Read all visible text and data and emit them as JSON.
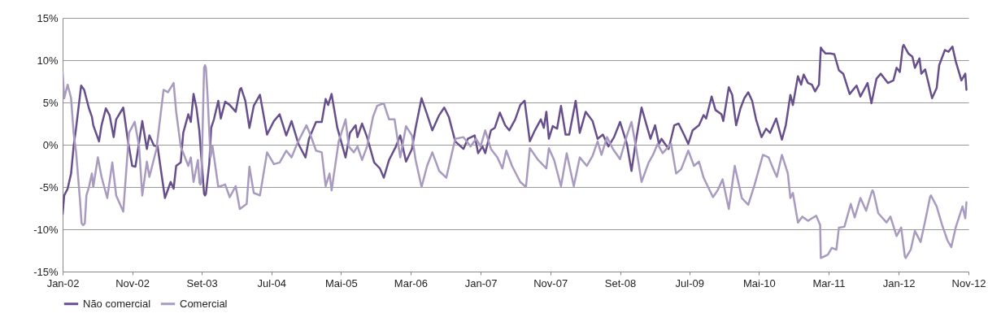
{
  "chart_data": {
    "type": "line",
    "xlim": [
      "2002-01-01",
      "2012-11-01"
    ],
    "xticks": [
      {
        "value": "2002-01-01",
        "label": "Jan-02"
      },
      {
        "value": "2002-11-01",
        "label": "Nov-02"
      },
      {
        "value": "2003-09-01",
        "label": "Set-03"
      },
      {
        "value": "2004-07-01",
        "label": "Jul-04"
      },
      {
        "value": "2005-05-01",
        "label": "Mai-05"
      },
      {
        "value": "2006-03-01",
        "label": "Mar-06"
      },
      {
        "value": "2007-01-01",
        "label": "Jan-07"
      },
      {
        "value": "2007-11-01",
        "label": "Nov-07"
      },
      {
        "value": "2008-09-01",
        "label": "Set-08"
      },
      {
        "value": "2009-07-01",
        "label": "Jul-09"
      },
      {
        "value": "2010-05-01",
        "label": "Mai-10"
      },
      {
        "value": "2011-03-01",
        "label": "Mar-11"
      },
      {
        "value": "2012-01-01",
        "label": "Jan-12"
      },
      {
        "value": "2012-11-01",
        "label": "Nov-12"
      }
    ],
    "ylim": [
      -15,
      15
    ],
    "yticks": [
      {
        "value": -15,
        "label": "-15%"
      },
      {
        "value": -10,
        "label": "-10%"
      },
      {
        "value": -5,
        "label": "-5%"
      },
      {
        "value": 0,
        "label": "0%"
      },
      {
        "value": 5,
        "label": "5%"
      },
      {
        "value": 10,
        "label": "10%"
      },
      {
        "value": 15,
        "label": "15%"
      }
    ],
    "grid": "y",
    "legend": "bottom",
    "line_style": "solid",
    "marker": "none",
    "series": [
      {
        "name": "Não comercial",
        "color": "#674f8c",
        "x": [
          "2002-01-01",
          "2002-01-08",
          "2002-01-23",
          "2002-02-07",
          "2002-02-18",
          "2002-03-01",
          "2002-03-23",
          "2002-04-05",
          "2002-04-26",
          "2002-05-09",
          "2002-05-15",
          "2002-06-09",
          "2002-06-20",
          "2002-07-09",
          "2002-07-25",
          "2002-08-12",
          "2002-08-23",
          "2002-09-23",
          "2002-10-12",
          "2002-11-01",
          "2002-11-15",
          "2002-12-15",
          "2003-01-04",
          "2003-01-15",
          "2003-02-04",
          "2003-02-20",
          "2003-03-07",
          "2003-03-24",
          "2003-04-18",
          "2003-05-01",
          "2003-05-12",
          "2003-06-01",
          "2003-06-12",
          "2003-07-04",
          "2003-07-15",
          "2003-07-27",
          "2003-08-09",
          "2003-08-21",
          "2003-09-11",
          "2003-09-15",
          "2003-09-19",
          "2003-10-04",
          "2003-10-12",
          "2003-10-24",
          "2003-11-12",
          "2003-11-23",
          "2003-12-12",
          "2004-01-01",
          "2004-01-27",
          "2004-02-14",
          "2004-02-20",
          "2004-03-09",
          "2004-03-27",
          "2004-04-15",
          "2004-05-12",
          "2004-06-12",
          "2004-07-12",
          "2004-08-06",
          "2004-09-04",
          "2004-09-27",
          "2004-10-27",
          "2004-11-27",
          "2004-12-12",
          "2005-01-12",
          "2005-02-06",
          "2005-02-23",
          "2005-03-06",
          "2005-03-21",
          "2005-04-15",
          "2005-05-21",
          "2005-06-09",
          "2005-07-04",
          "2005-07-12",
          "2005-08-01",
          "2005-08-23",
          "2005-09-23",
          "2005-10-18",
          "2005-11-04",
          "2005-11-27",
          "2005-12-27",
          "2006-01-15",
          "2006-02-09",
          "2006-03-07",
          "2006-03-23",
          "2006-04-18",
          "2006-05-12",
          "2006-06-04",
          "2006-07-04",
          "2006-07-26",
          "2006-08-15",
          "2006-09-12",
          "2006-10-18",
          "2006-11-06",
          "2006-12-06",
          "2006-12-21",
          "2007-01-09",
          "2007-01-21",
          "2007-02-15",
          "2007-03-04",
          "2007-03-26",
          "2007-04-18",
          "2007-05-06",
          "2007-06-01",
          "2007-06-23",
          "2007-07-12",
          "2007-08-04",
          "2007-08-26",
          "2007-09-21",
          "2007-10-04",
          "2007-10-15",
          "2007-10-26",
          "2007-11-12",
          "2007-12-01",
          "2007-12-18",
          "2008-01-07",
          "2008-01-23",
          "2008-02-20",
          "2008-03-09",
          "2008-04-04",
          "2008-05-04",
          "2008-05-26",
          "2008-06-18",
          "2008-07-12",
          "2008-08-06",
          "2008-09-01",
          "2008-10-01",
          "2008-10-21",
          "2008-11-09",
          "2008-12-04",
          "2008-12-26",
          "2009-01-12",
          "2009-02-01",
          "2009-02-18",
          "2009-03-01",
          "2009-04-01",
          "2009-04-26",
          "2009-05-15",
          "2009-06-09",
          "2009-06-26",
          "2009-07-15",
          "2009-08-12",
          "2009-09-01",
          "2009-09-12",
          "2009-10-06",
          "2009-10-23",
          "2009-11-18",
          "2009-11-26",
          "2009-12-20",
          "2010-01-04",
          "2010-01-21",
          "2010-02-09",
          "2010-02-26",
          "2010-03-15",
          "2010-04-01",
          "2010-04-18",
          "2010-05-12",
          "2010-06-01",
          "2010-06-18",
          "2010-07-15",
          "2010-08-09",
          "2010-08-26",
          "2010-09-15",
          "2010-09-26",
          "2010-10-18",
          "2010-11-01",
          "2010-11-12",
          "2010-12-01",
          "2010-12-18",
          "2011-01-01",
          "2011-01-18",
          "2011-01-26",
          "2011-01-30",
          "2011-02-15",
          "2011-03-09",
          "2011-03-26",
          "2011-04-15",
          "2011-05-04",
          "2011-06-01",
          "2011-07-01",
          "2011-07-18",
          "2011-08-18",
          "2011-09-04",
          "2011-09-26",
          "2011-10-15",
          "2011-11-15",
          "2011-12-09",
          "2011-12-23",
          "2012-01-06",
          "2012-01-19",
          "2012-01-23",
          "2012-01-27",
          "2012-02-12",
          "2012-03-01",
          "2012-03-12",
          "2012-04-01",
          "2012-04-09",
          "2012-04-26",
          "2012-05-26",
          "2012-06-15",
          "2012-06-26",
          "2012-07-21",
          "2012-08-06",
          "2012-08-23",
          "2012-09-06",
          "2012-10-01",
          "2012-10-18",
          "2012-10-23"
        ],
        "values": [
          -8.2,
          -6.0,
          -5.2,
          -3.4,
          -0.2,
          2.0,
          7.0,
          6.5,
          4.3,
          3.3,
          2.3,
          0.4,
          2.3,
          4.3,
          3.5,
          0.9,
          3.0,
          4.4,
          0.7,
          -2.5,
          -2.6,
          2.8,
          -0.5,
          1.1,
          -0.1,
          -0.2,
          -3.1,
          -6.3,
          -4.4,
          -5.2,
          -2.5,
          -2.1,
          1.4,
          3.6,
          2.7,
          6.0,
          4.3,
          1.7,
          -5.8,
          -6.0,
          -5.8,
          -2.1,
          2.0,
          3.0,
          5.2,
          3.1,
          5.1,
          4.7,
          3.9,
          6.5,
          6.7,
          5.2,
          2.0,
          4.6,
          5.9,
          1.2,
          2.8,
          3.6,
          1.1,
          2.8,
          0.1,
          -1.5,
          0.7,
          2.7,
          2.7,
          5.4,
          4.7,
          6.0,
          2.0,
          -1.5,
          1.4,
          2.3,
          0.9,
          2.5,
          0.9,
          -2.1,
          -2.8,
          -3.9,
          -1.8,
          -0.2,
          1.1,
          -2.0,
          -0.5,
          2.0,
          5.5,
          3.6,
          1.7,
          3.5,
          4.4,
          3.3,
          0.4,
          -0.5,
          0.7,
          1.1,
          -1.0,
          -0.2,
          -1.0,
          1.7,
          2.0,
          3.8,
          2.3,
          1.7,
          3.0,
          4.7,
          5.2,
          0.4,
          1.7,
          3.0,
          2.0,
          3.9,
          0.7,
          2.2,
          1.9,
          4.6,
          1.2,
          1.2,
          5.2,
          1.4,
          3.9,
          2.8,
          0.7,
          1.2,
          -0.2,
          0.9,
          2.7,
          0.1,
          -3.1,
          0.4,
          4.4,
          2.3,
          0.7,
          2.3,
          0.1,
          0.7,
          -0.5,
          2.3,
          2.5,
          1.1,
          0.1,
          1.7,
          2.3,
          3.5,
          3.1,
          5.7,
          4.1,
          3.6,
          2.8,
          6.8,
          5.9,
          2.3,
          4.3,
          5.5,
          6.2,
          5.2,
          3.0,
          0.9,
          1.9,
          1.4,
          3.1,
          0.6,
          2.3,
          5.9,
          4.7,
          8.1,
          7.1,
          8.3,
          7.3,
          7.1,
          6.3,
          7.1,
          11.5,
          11.3,
          10.8,
          10.8,
          10.7,
          8.8,
          8.4,
          6.0,
          7.0,
          5.7,
          7.3,
          4.9,
          7.8,
          8.4,
          7.3,
          7.6,
          9.1,
          8.6,
          11.6,
          11.8,
          11.6,
          10.8,
          10.4,
          9.1,
          10.2,
          8.4,
          8.9,
          5.5,
          6.7,
          9.4,
          11.2,
          11.0,
          11.6,
          9.9,
          7.6,
          8.4,
          6.5
        ]
      },
      {
        "name": "Comercial",
        "color": "#a89bbf",
        "x": [
          "2002-01-01",
          "2002-01-08",
          "2002-01-23",
          "2002-02-07",
          "2002-02-18",
          "2002-03-01",
          "2002-03-18",
          "2002-03-25",
          "2002-04-01",
          "2002-04-08",
          "2002-04-15",
          "2002-04-26",
          "2002-05-09",
          "2002-05-15",
          "2002-06-04",
          "2002-06-20",
          "2002-07-15",
          "2002-08-06",
          "2002-08-23",
          "2002-09-23",
          "2002-10-18",
          "2002-11-12",
          "2002-12-01",
          "2002-12-15",
          "2003-01-04",
          "2003-01-15",
          "2003-02-15",
          "2003-03-18",
          "2003-04-06",
          "2003-05-01",
          "2003-05-12",
          "2003-06-01",
          "2003-07-04",
          "2003-07-15",
          "2003-07-27",
          "2003-08-15",
          "2003-08-22",
          "2003-08-26",
          "2003-08-30",
          "2003-09-11",
          "2003-09-15",
          "2003-09-19",
          "2003-09-26",
          "2003-10-09",
          "2003-10-18",
          "2003-11-12",
          "2003-12-12",
          "2004-01-01",
          "2004-01-27",
          "2004-02-14",
          "2004-03-15",
          "2004-03-27",
          "2004-04-15",
          "2004-05-12",
          "2004-06-12",
          "2004-07-12",
          "2004-08-06",
          "2004-09-04",
          "2004-09-27",
          "2004-10-21",
          "2004-12-01",
          "2004-12-18",
          "2005-01-12",
          "2005-02-06",
          "2005-02-23",
          "2005-03-12",
          "2005-03-21",
          "2005-04-21",
          "2005-05-21",
          "2005-06-04",
          "2005-06-26",
          "2005-07-12",
          "2005-08-01",
          "2005-08-23",
          "2005-09-18",
          "2005-10-06",
          "2005-11-04",
          "2005-11-27",
          "2005-12-21",
          "2006-01-15",
          "2006-02-09",
          "2006-03-07",
          "2006-03-23",
          "2006-04-18",
          "2006-05-12",
          "2006-06-04",
          "2006-07-04",
          "2006-08-04",
          "2006-09-12",
          "2006-10-18",
          "2006-11-18",
          "2006-12-12",
          "2007-01-01",
          "2007-01-21",
          "2007-02-15",
          "2007-03-15",
          "2007-04-06",
          "2007-04-23",
          "2007-05-18",
          "2007-06-23",
          "2007-07-18",
          "2007-08-04",
          "2007-09-09",
          "2007-10-15",
          "2007-10-26",
          "2007-11-18",
          "2007-12-18",
          "2008-01-12",
          "2008-02-12",
          "2008-03-09",
          "2008-04-09",
          "2008-05-04",
          "2008-05-26",
          "2008-06-12",
          "2008-07-06",
          "2008-08-01",
          "2008-09-01",
          "2008-10-01",
          "2008-10-21",
          "2008-11-09",
          "2008-12-04",
          "2009-01-04",
          "2009-01-23",
          "2009-02-12",
          "2009-03-06",
          "2009-04-12",
          "2009-05-04",
          "2009-05-26",
          "2009-06-26",
          "2009-07-21",
          "2009-08-12",
          "2009-09-01",
          "2009-10-12",
          "2009-11-01",
          "2009-11-23",
          "2009-12-20",
          "2010-01-15",
          "2010-02-15",
          "2010-03-15",
          "2010-04-12",
          "2010-05-18",
          "2010-06-12",
          "2010-07-06",
          "2010-07-18",
          "2010-08-09",
          "2010-09-04",
          "2010-09-15",
          "2010-09-26",
          "2010-10-18",
          "2010-11-06",
          "2010-12-01",
          "2010-12-18",
          "2011-01-06",
          "2011-01-23",
          "2011-01-26",
          "2011-02-26",
          "2011-03-15",
          "2011-04-04",
          "2011-04-15",
          "2011-05-09",
          "2011-06-06",
          "2011-06-23",
          "2011-07-18",
          "2011-08-12",
          "2011-09-05",
          "2011-09-09",
          "2011-09-13",
          "2011-10-04",
          "2011-11-09",
          "2011-11-26",
          "2011-12-23",
          "2012-01-12",
          "2012-01-28",
          "2012-02-01",
          "2012-02-05",
          "2012-02-23",
          "2012-03-12",
          "2012-04-06",
          "2012-04-26",
          "2012-05-17",
          "2012-05-21",
          "2012-05-25",
          "2012-06-15",
          "2012-07-09",
          "2012-08-01",
          "2012-08-18",
          "2012-09-06",
          "2012-10-06",
          "2012-10-18",
          "2012-10-23"
        ],
        "values": [
          8.6,
          5.5,
          7.1,
          5.5,
          1.4,
          -0.9,
          -6.6,
          -9.3,
          -9.5,
          -9.3,
          -6.0,
          -5.0,
          -3.4,
          -5.0,
          -1.5,
          -3.8,
          -6.3,
          -2.1,
          -6.0,
          -7.9,
          1.4,
          2.7,
          -0.2,
          -6.0,
          -2.0,
          -3.8,
          -0.5,
          6.5,
          6.2,
          7.3,
          3.9,
          -0.2,
          -2.5,
          -1.5,
          -4.4,
          -1.8,
          -4.5,
          -4.7,
          -4.4,
          9.1,
          9.4,
          9.1,
          5.9,
          -1.5,
          -0.2,
          -5.0,
          -4.7,
          -6.2,
          -4.9,
          -7.6,
          -7.0,
          -2.6,
          -5.7,
          -6.0,
          -0.9,
          -2.3,
          -2.1,
          -0.7,
          -1.5,
          0.1,
          2.3,
          1.2,
          -0.7,
          -0.9,
          -4.9,
          -3.4,
          -5.4,
          0.4,
          3.0,
          -0.2,
          -0.9,
          -0.2,
          -1.8,
          -0.2,
          3.3,
          4.6,
          4.9,
          3.0,
          3.0,
          -1.5,
          2.2,
          1.1,
          -1.8,
          -5.0,
          -2.5,
          -0.9,
          -3.1,
          -3.9,
          0.7,
          0.9,
          -0.2,
          0.7,
          -0.2,
          1.7,
          -0.5,
          -1.5,
          -2.8,
          -0.7,
          -2.5,
          -4.4,
          -5.0,
          -0.4,
          -1.8,
          -2.8,
          -0.4,
          -1.8,
          -4.9,
          -1.0,
          -4.9,
          -1.5,
          -2.5,
          -1.3,
          0.4,
          -1.2,
          0.9,
          -0.5,
          -1.7,
          1.1,
          2.7,
          -0.2,
          -4.4,
          -2.1,
          -1.2,
          0.1,
          -1.0,
          0.1,
          -3.4,
          -2.9,
          -0.7,
          -2.5,
          -2.0,
          -3.9,
          -6.2,
          -5.4,
          -4.1,
          -7.6,
          -2.5,
          -6.3,
          -7.1,
          -4.7,
          -1.2,
          -1.5,
          -3.1,
          -3.8,
          -1.2,
          -3.4,
          -6.3,
          -5.7,
          -9.2,
          -8.5,
          -9.0,
          -8.7,
          -8.4,
          -9.5,
          -13.4,
          -13.0,
          -12.2,
          -12.4,
          -9.8,
          -9.7,
          -7.0,
          -8.6,
          -6.3,
          -7.8,
          -5.6,
          -5.4,
          -5.6,
          -8.1,
          -9.2,
          -8.5,
          -10.8,
          -9.8,
          -13.2,
          -13.4,
          -13.2,
          -12.4,
          -10.2,
          -11.5,
          -9.0,
          -6.2,
          -6.0,
          -6.2,
          -7.3,
          -9.5,
          -11.3,
          -12.1,
          -9.8,
          -7.3,
          -8.7,
          -6.8
        ]
      }
    ]
  }
}
